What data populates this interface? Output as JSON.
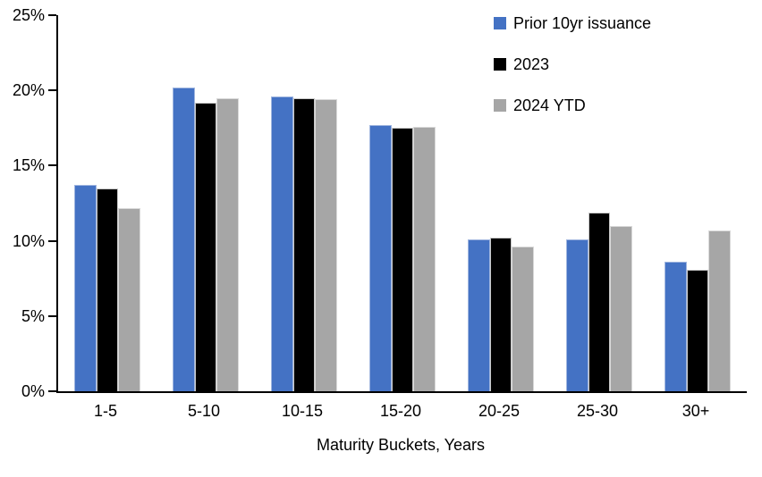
{
  "chart_data": {
    "type": "bar",
    "title": "",
    "xlabel": "Maturity Buckets, Years",
    "ylabel": "",
    "categories": [
      "1-5",
      "5-10",
      "10-15",
      "15-20",
      "20-25",
      "25-30",
      "30+"
    ],
    "series": [
      {
        "name": "Prior 10yr issuance",
        "color": "#4472C4",
        "border_color": "#9FB5DF",
        "values": [
          13.7,
          20.2,
          19.6,
          17.7,
          10.1,
          10.1,
          8.6
        ]
      },
      {
        "name": "2023",
        "color": "#000000",
        "border_color": "#C8C8C8",
        "values": [
          13.5,
          19.2,
          19.5,
          17.5,
          10.2,
          11.9,
          8.1
        ]
      },
      {
        "name": "2024 YTD",
        "color": "#A6A6A6",
        "border_color": "#D9D9D9",
        "values": [
          12.2,
          19.5,
          19.4,
          17.6,
          9.6,
          11.0,
          10.7
        ]
      }
    ],
    "ylim": [
      0,
      25
    ],
    "yticks": [
      0,
      5,
      10,
      15,
      20,
      25
    ],
    "ytick_labels": [
      "0%",
      "5%",
      "10%",
      "15%",
      "20%",
      "25%"
    ],
    "grid": false,
    "legend_position": "top-right",
    "background": "#ffffff",
    "axis_color": "#000000"
  }
}
